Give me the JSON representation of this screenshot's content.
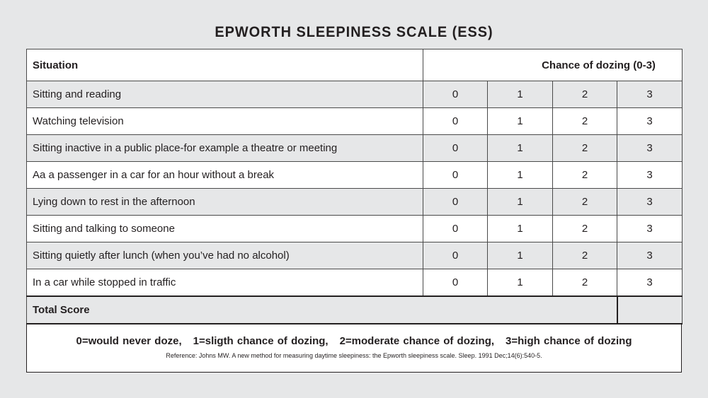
{
  "title": "EPWORTH SLEEPINESS SCALE (ESS)",
  "header": {
    "situation": "Situation",
    "chance": "Chance of dozing (0-3)"
  },
  "scores": [
    "0",
    "1",
    "2",
    "3"
  ],
  "rows": [
    {
      "situation": "Sitting and reading"
    },
    {
      "situation": "Watching television"
    },
    {
      "situation": "Sitting inactive in a public place-for example a theatre or meeting"
    },
    {
      "situation": "Aa a passenger in a car for an hour without a break"
    },
    {
      "situation": "Lying down to rest in the afternoon"
    },
    {
      "situation": "Sitting and talking to someone"
    },
    {
      "situation": "Sitting quietly after lunch (when you’ve had no alcohol)"
    },
    {
      "situation": "In a car while stopped in traffic"
    }
  ],
  "total": {
    "label": "Total Score",
    "value": ""
  },
  "legend": [
    "0=would never doze,",
    "1=sligth chance of dozing,",
    "2=moderate chance of dozing,",
    "3=high chance of dozing"
  ],
  "reference": "Reference: Johns MW. A new method for measuring daytime sleepiness: the Epworth sleepiness scale. Sleep. 1991 Dec;14(6):540-5."
}
